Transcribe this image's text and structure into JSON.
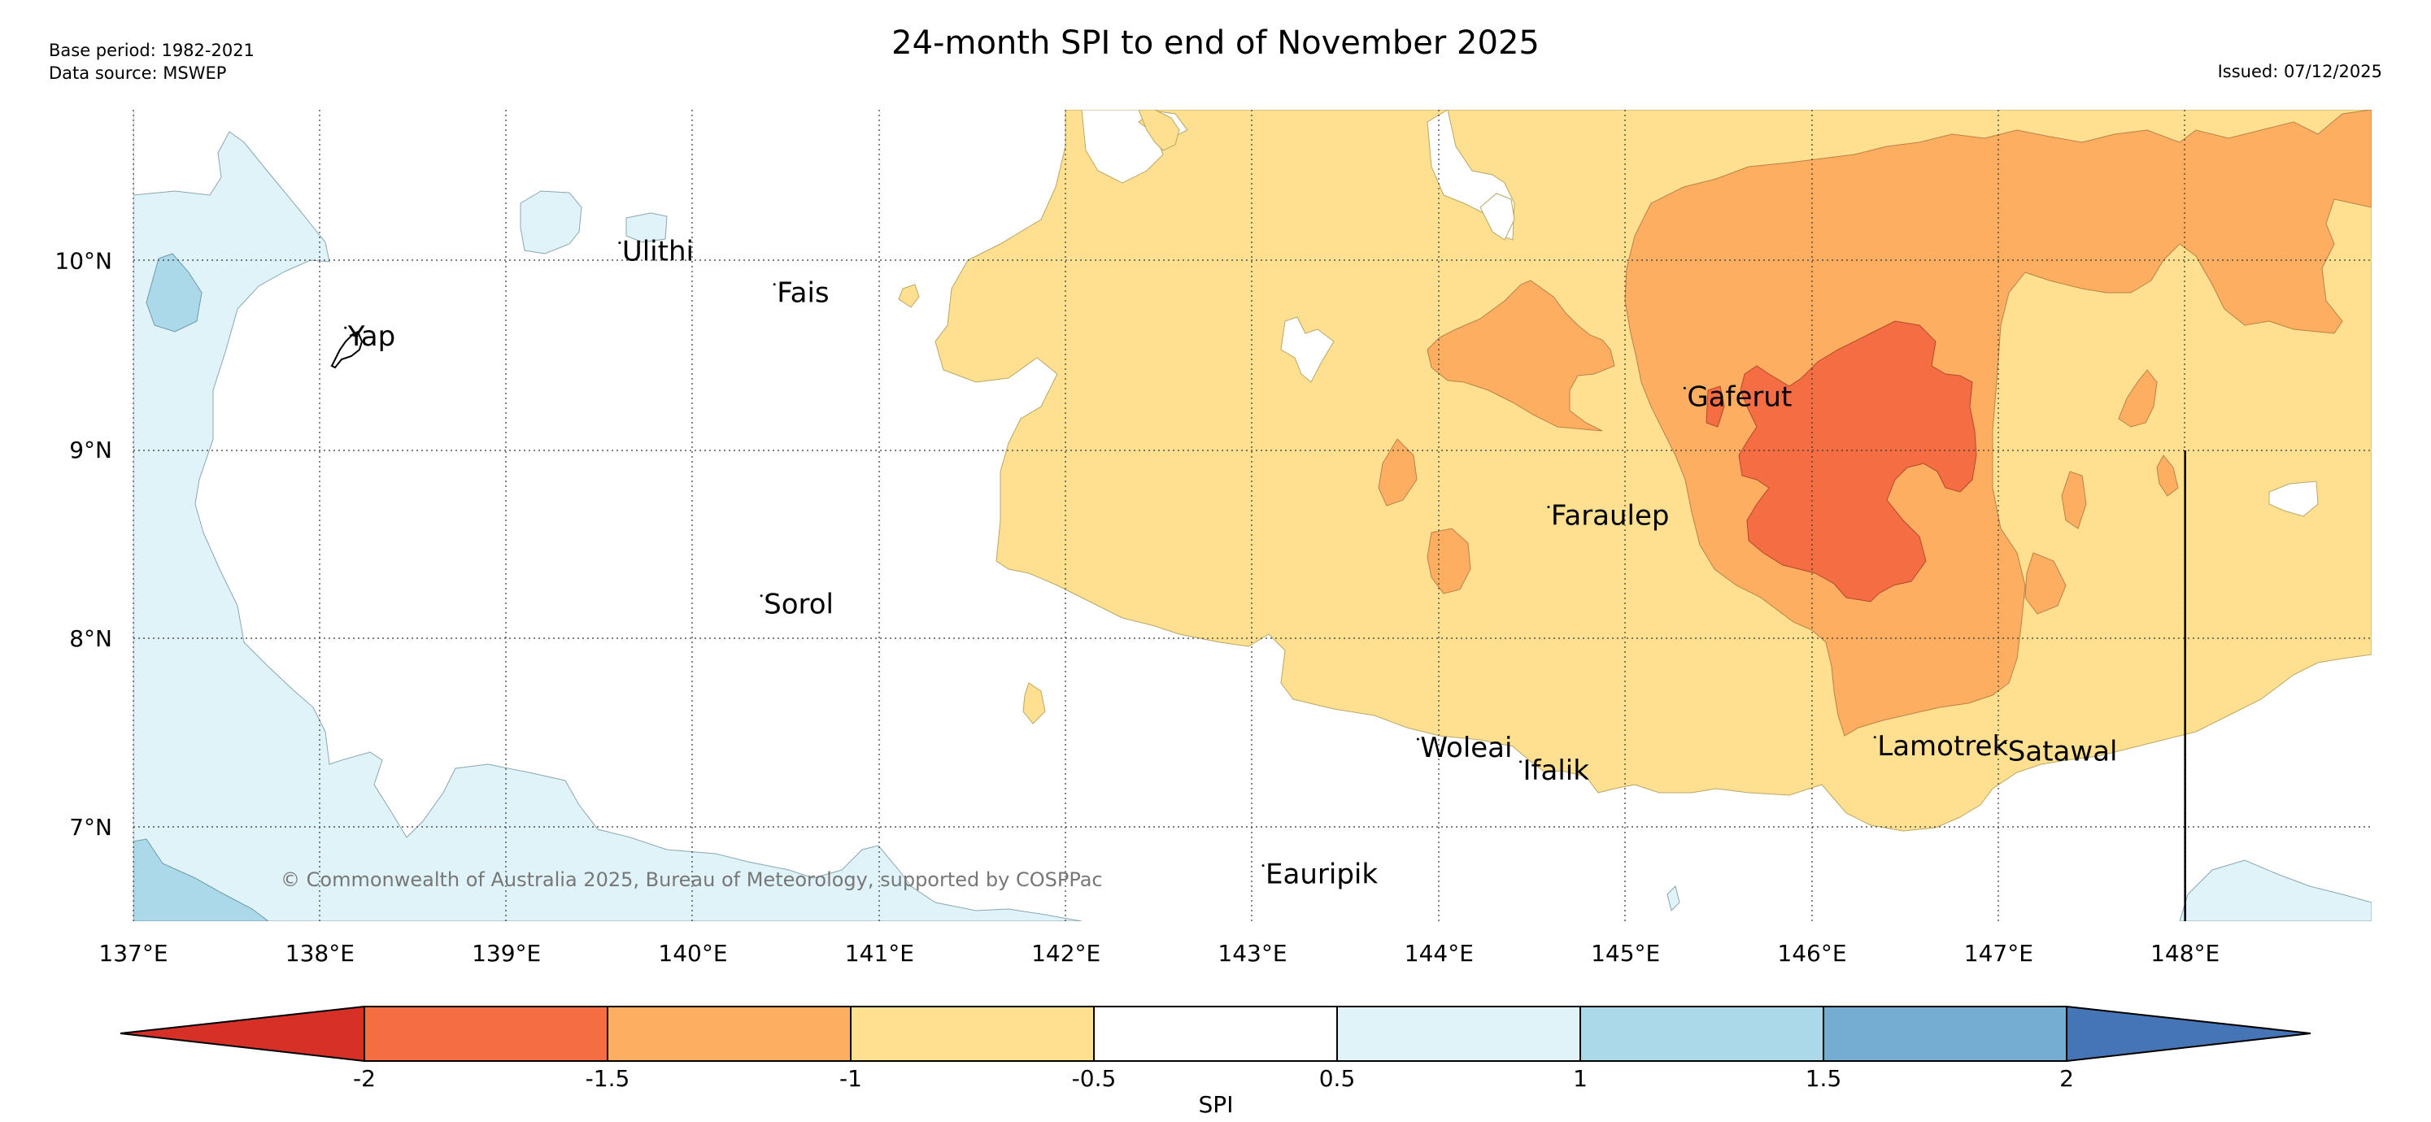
{
  "title": "24-month SPI to end of November 2025",
  "meta": {
    "base_period": "Base period: 1982-2021",
    "data_source": "Data source: MSWEP",
    "issued": "Issued: 07/12/2025"
  },
  "copyright": "© Commonwealth of Australia 2025, Bureau of Meteorology, supported by COSPPac",
  "map": {
    "lon_range": [
      137,
      149
    ],
    "lat_range": [
      6.5,
      10.8
    ],
    "grid_lines": "dotted",
    "lon_ticks": [
      {
        "value": 137,
        "label": "137°E"
      },
      {
        "value": 138,
        "label": "138°E"
      },
      {
        "value": 139,
        "label": "139°E"
      },
      {
        "value": 140,
        "label": "140°E"
      },
      {
        "value": 141,
        "label": "141°E"
      },
      {
        "value": 142,
        "label": "142°E"
      },
      {
        "value": 143,
        "label": "143°E"
      },
      {
        "value": 144,
        "label": "144°E"
      },
      {
        "value": 145,
        "label": "145°E"
      },
      {
        "value": 146,
        "label": "146°E"
      },
      {
        "value": 147,
        "label": "147°E"
      },
      {
        "value": 148,
        "label": "148°E"
      }
    ],
    "lat_ticks": [
      {
        "value": 10,
        "label": "10°N"
      },
      {
        "value": 9,
        "label": "9°N"
      },
      {
        "value": 8,
        "label": "8°N"
      },
      {
        "value": 7,
        "label": "7°N"
      }
    ],
    "places": [
      {
        "name": "Yap",
        "lon": 138.15,
        "lat": 9.55
      },
      {
        "name": "Ulithi",
        "lon": 139.62,
        "lat": 10.0
      },
      {
        "name": "Fais",
        "lon": 140.45,
        "lat": 9.78
      },
      {
        "name": "Sorol",
        "lon": 140.38,
        "lat": 8.13
      },
      {
        "name": "Gaferut",
        "lon": 145.33,
        "lat": 9.23
      },
      {
        "name": "Faraulep",
        "lon": 144.6,
        "lat": 8.6
      },
      {
        "name": "Woleai",
        "lon": 143.9,
        "lat": 7.37
      },
      {
        "name": "Ifalik",
        "lon": 144.45,
        "lat": 7.25
      },
      {
        "name": "Lamotrek",
        "lon": 146.35,
        "lat": 7.38
      },
      {
        "name": "Satawal",
        "lon": 147.05,
        "lat": 7.35
      },
      {
        "name": "Eauripik",
        "lon": 143.07,
        "lat": 6.7
      }
    ],
    "divider_lon": 148.0
  },
  "legend": {
    "label": "SPI",
    "colors": [
      "#d73027",
      "#f46d43",
      "#fdae61",
      "#fee090",
      "#ffffff",
      "#e0f3f8",
      "#abd9e9",
      "#74add1",
      "#4575b4"
    ],
    "ticks": [
      "-2",
      "-1.5",
      "-1",
      "-0.5",
      "0.5",
      "1",
      "1.5",
      "2"
    ]
  }
}
